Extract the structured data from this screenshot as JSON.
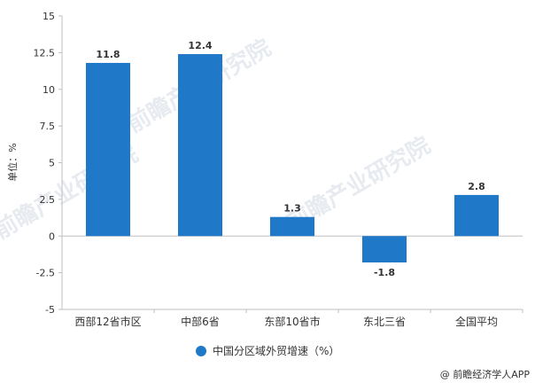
{
  "chart_data": {
    "type": "bar",
    "categories": [
      "西部12省市区",
      "中部6省",
      "东部10省市",
      "东北三省",
      "全国平均"
    ],
    "series": [
      {
        "name": "中国分区域外贸增速（%）",
        "values": [
          11.8,
          12.4,
          1.3,
          -1.8,
          2.8
        ],
        "color": "#1f78c8"
      }
    ],
    "data_labels": [
      "11.8",
      "12.4",
      "1.3",
      "-1.8",
      "2.8"
    ],
    "ylabel": "单位：%",
    "ylim": [
      -5,
      15
    ],
    "yticks": [
      -5,
      -2.5,
      0,
      2.5,
      5,
      7.5,
      10,
      12.5,
      15
    ],
    "ytick_labels": [
      "-5",
      "-2.5",
      "0",
      "2.5",
      "5",
      "7.5",
      "10",
      "12.5",
      "15"
    ],
    "grid": false,
    "legend_position": "bottom-center"
  },
  "watermark": {
    "text": "前瞻产业研究院"
  },
  "footer": {
    "text": "@ 前瞻经济学人APP"
  }
}
